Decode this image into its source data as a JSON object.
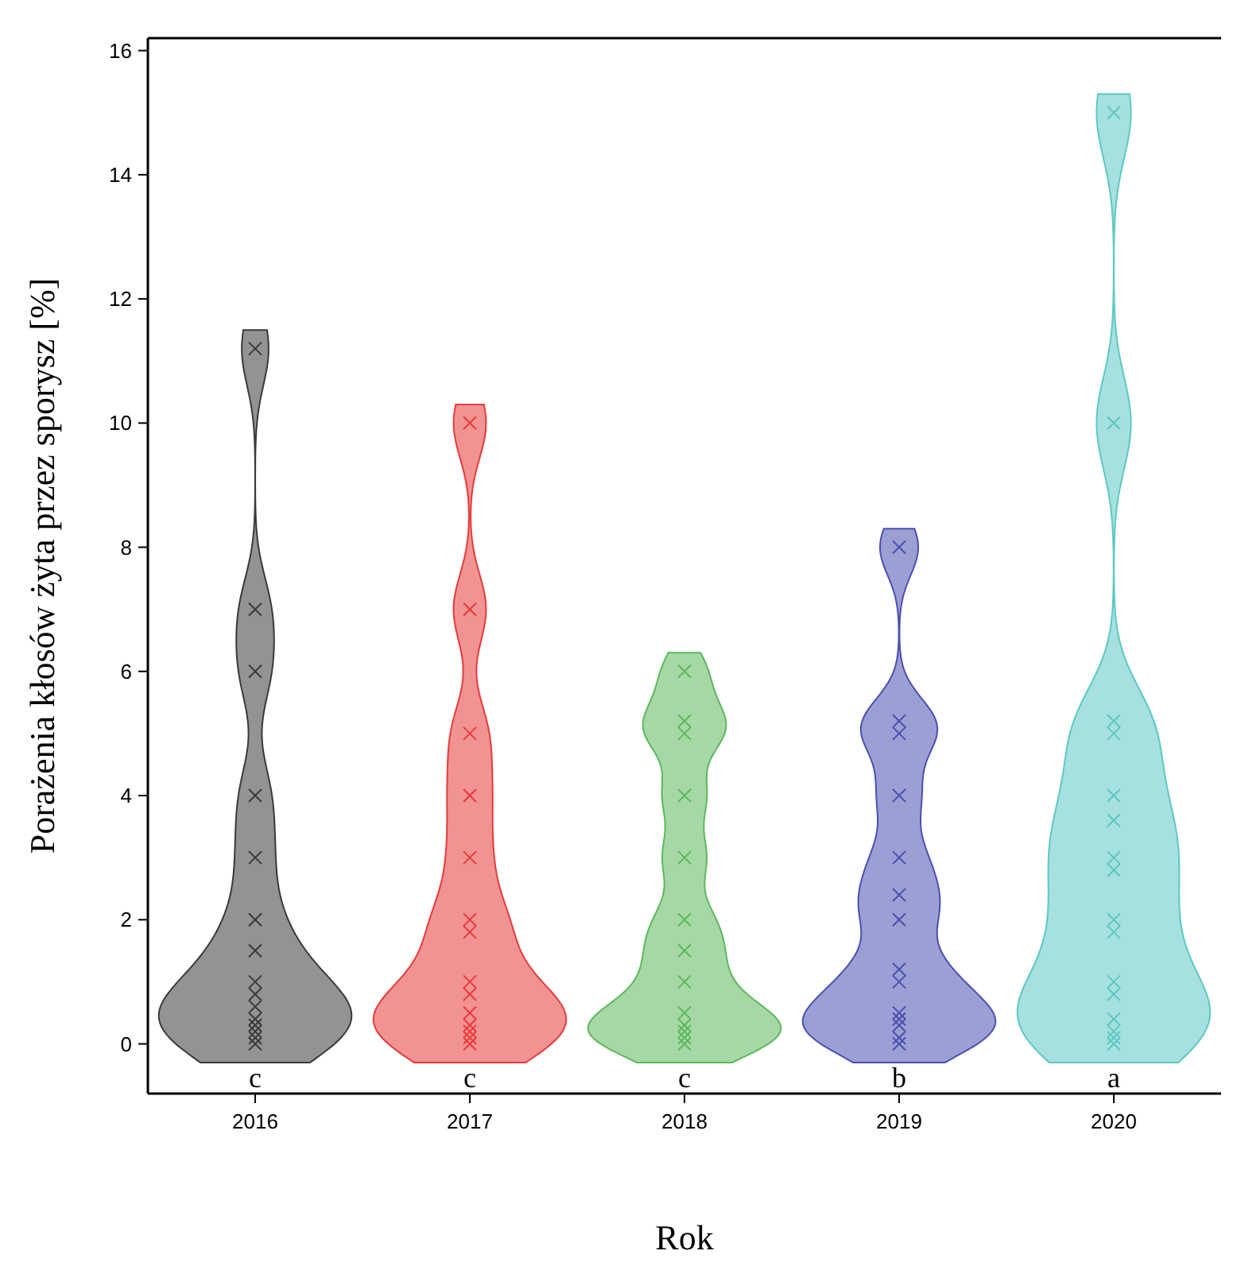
{
  "chart_data": {
    "type": "scatter",
    "xlabel": "Rok",
    "ylabel": "Porażenia kłosów żyta przez sporysz [%]",
    "xlim": [
      2015.5,
      2020.5
    ],
    "xticks": [
      2016,
      2017,
      2018,
      2019,
      2020
    ],
    "ylim": [
      -0.8,
      16.2
    ],
    "yticks": [
      0,
      2,
      4,
      6,
      8,
      10,
      12,
      14,
      16
    ],
    "marker": "cross",
    "grid": false,
    "series": [
      {
        "color": "#3a3a3a",
        "x": [
          2016,
          2016,
          2016,
          2016,
          2016,
          2016,
          2016,
          2016,
          2016,
          2016,
          2016,
          2016,
          2016,
          2016,
          2016
        ],
        "values": [
          11.2,
          7,
          6,
          4,
          3,
          2,
          1.5,
          1,
          0.8,
          0.6,
          0.4,
          0.3,
          0.2,
          0.1,
          0
        ]
      },
      {
        "color": "#e83a3a",
        "x": [
          2017,
          2017,
          2017,
          2017,
          2017,
          2017,
          2017,
          2017,
          2017,
          2017,
          2017,
          2017,
          2017,
          2017
        ],
        "values": [
          10,
          7,
          5,
          4,
          3,
          2,
          1.8,
          1,
          0.8,
          0.5,
          0.3,
          0.2,
          0.1,
          0
        ]
      },
      {
        "color": "#5cb85c",
        "x": [
          2018,
          2018,
          2018,
          2018,
          2018,
          2018,
          2018,
          2018,
          2018,
          2018,
          2018,
          2018,
          2018
        ],
        "values": [
          6,
          5.2,
          5,
          4,
          3,
          2,
          1.5,
          1,
          0.5,
          0.3,
          0.2,
          0.1,
          0
        ]
      },
      {
        "color": "#4a50b0",
        "x": [
          2019,
          2019,
          2019,
          2019,
          2019,
          2019,
          2019,
          2019,
          2019,
          2019,
          2019,
          2019,
          2019,
          2019
        ],
        "values": [
          8,
          5.2,
          5,
          4,
          3,
          2.4,
          2,
          1.2,
          1,
          0.5,
          0.4,
          0.3,
          0.1,
          0
        ]
      },
      {
        "color": "#5cc8c4",
        "x": [
          2020,
          2020,
          2020,
          2020,
          2020,
          2020,
          2020,
          2020,
          2020,
          2020,
          2020,
          2020,
          2020,
          2020,
          2020,
          2020
        ],
        "values": [
          15,
          10,
          5.2,
          5,
          4,
          3.6,
          3,
          2.8,
          2,
          1.8,
          1,
          0.8,
          0.4,
          0.2,
          0.1,
          0
        ]
      }
    ],
    "annotations": [
      "c",
      "c",
      "c",
      "b",
      "a"
    ]
  }
}
